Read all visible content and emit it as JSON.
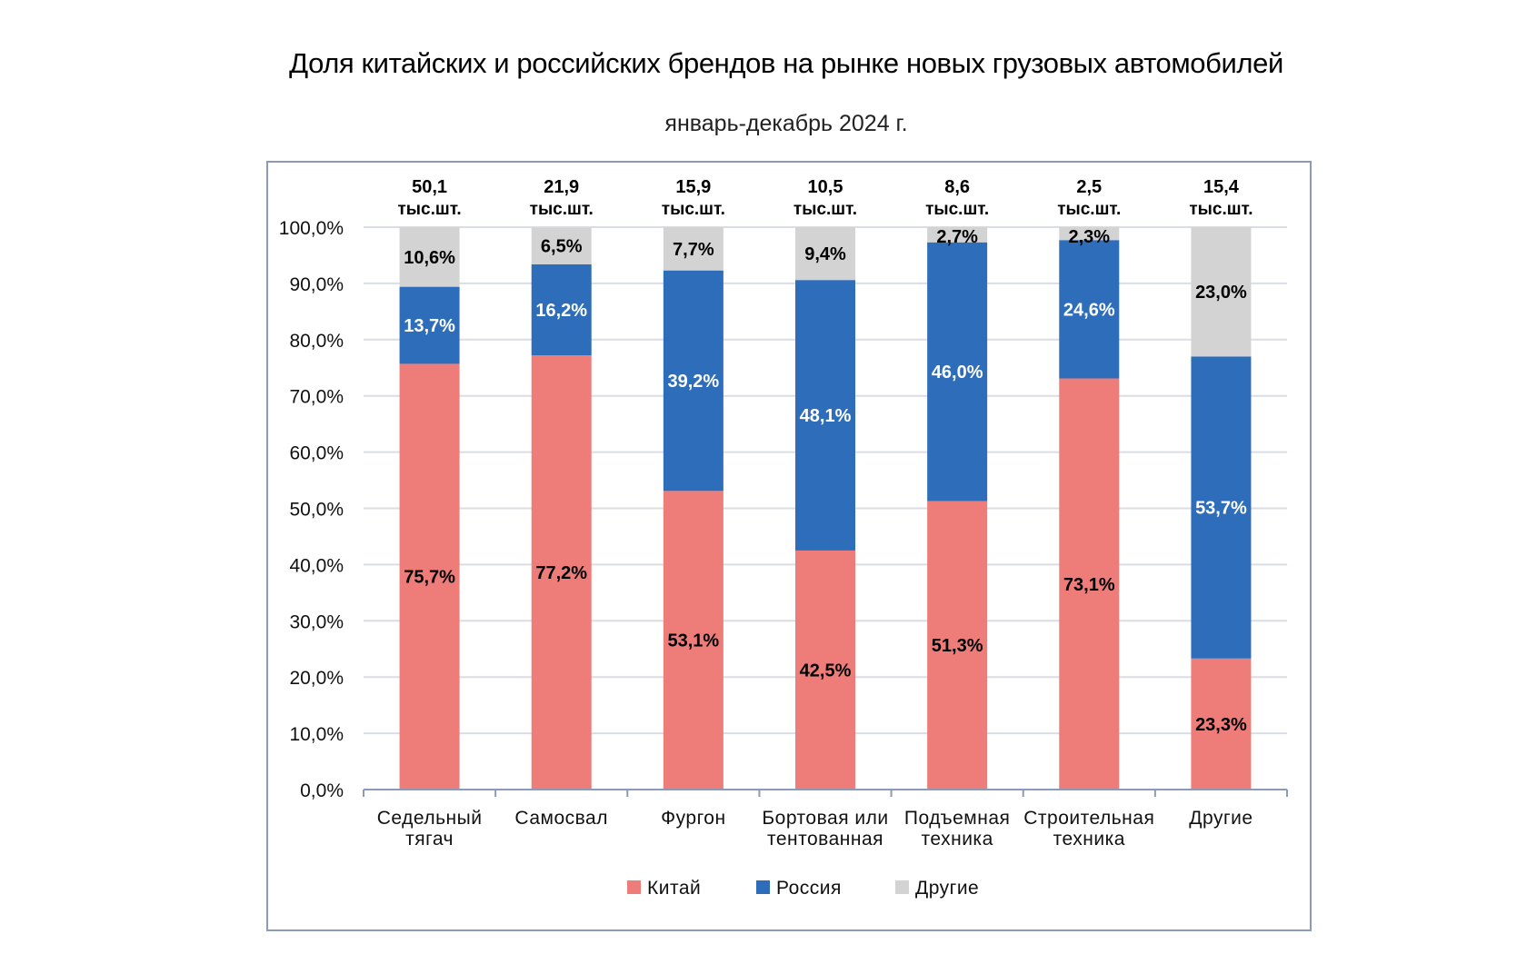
{
  "chart_data": {
    "type": "bar",
    "stacked": true,
    "title": "Доля китайских и российских брендов на рынке новых грузовых автомобилей",
    "subtitle": "январь-декабрь 2024 г.",
    "xlabel": "",
    "ylabel": "",
    "ylim": [
      0,
      100
    ],
    "yticks": [
      "0,0%",
      "10,0%",
      "20,0%",
      "30,0%",
      "40,0%",
      "50,0%",
      "60,0%",
      "70,0%",
      "80,0%",
      "90,0%",
      "100,0%"
    ],
    "grid": true,
    "legend_position": "bottom",
    "categories": [
      [
        "Седельный",
        "тягач"
      ],
      [
        "Самосвал"
      ],
      [
        "Фургон"
      ],
      [
        "Бортовая или",
        "тентованная"
      ],
      [
        "Подъемная",
        "техника"
      ],
      [
        "Строительная",
        "техника"
      ],
      [
        "Другие"
      ]
    ],
    "totals": [
      {
        "value": "50,1",
        "unit": "тыс.шт."
      },
      {
        "value": "21,9",
        "unit": "тыс.шт."
      },
      {
        "value": "15,9",
        "unit": "тыс.шт."
      },
      {
        "value": "10,5",
        "unit": "тыс.шт."
      },
      {
        "value": "8,6",
        "unit": "тыс.шт."
      },
      {
        "value": "2,5",
        "unit": "тыс.шт."
      },
      {
        "value": "15,4",
        "unit": "тыс.шт."
      }
    ],
    "series": [
      {
        "name": "Китай",
        "color": "#ee7c79",
        "label_color": "#000000",
        "values": [
          75.7,
          77.2,
          53.1,
          42.5,
          51.3,
          73.1,
          23.3
        ],
        "labels": [
          "75,7%",
          "77,2%",
          "53,1%",
          "42,5%",
          "51,3%",
          "73,1%",
          "23,3%"
        ]
      },
      {
        "name": "Россия",
        "color": "#2e6db9",
        "label_color": "#ffffff",
        "values": [
          13.7,
          16.2,
          39.2,
          48.1,
          46.0,
          24.6,
          53.7
        ],
        "labels": [
          "13,7%",
          "16,2%",
          "39,2%",
          "48,1%",
          "46,0%",
          "24,6%",
          "53,7%"
        ]
      },
      {
        "name": "Другие",
        "color": "#d3d3d3",
        "label_color": "#000000",
        "values": [
          10.6,
          6.5,
          7.7,
          9.4,
          2.7,
          2.3,
          23.0
        ],
        "labels": [
          "10,6%",
          "6,5%",
          "7,7%",
          "9,4%",
          "2,7%",
          "2,3%",
          "23,0%"
        ]
      }
    ]
  }
}
